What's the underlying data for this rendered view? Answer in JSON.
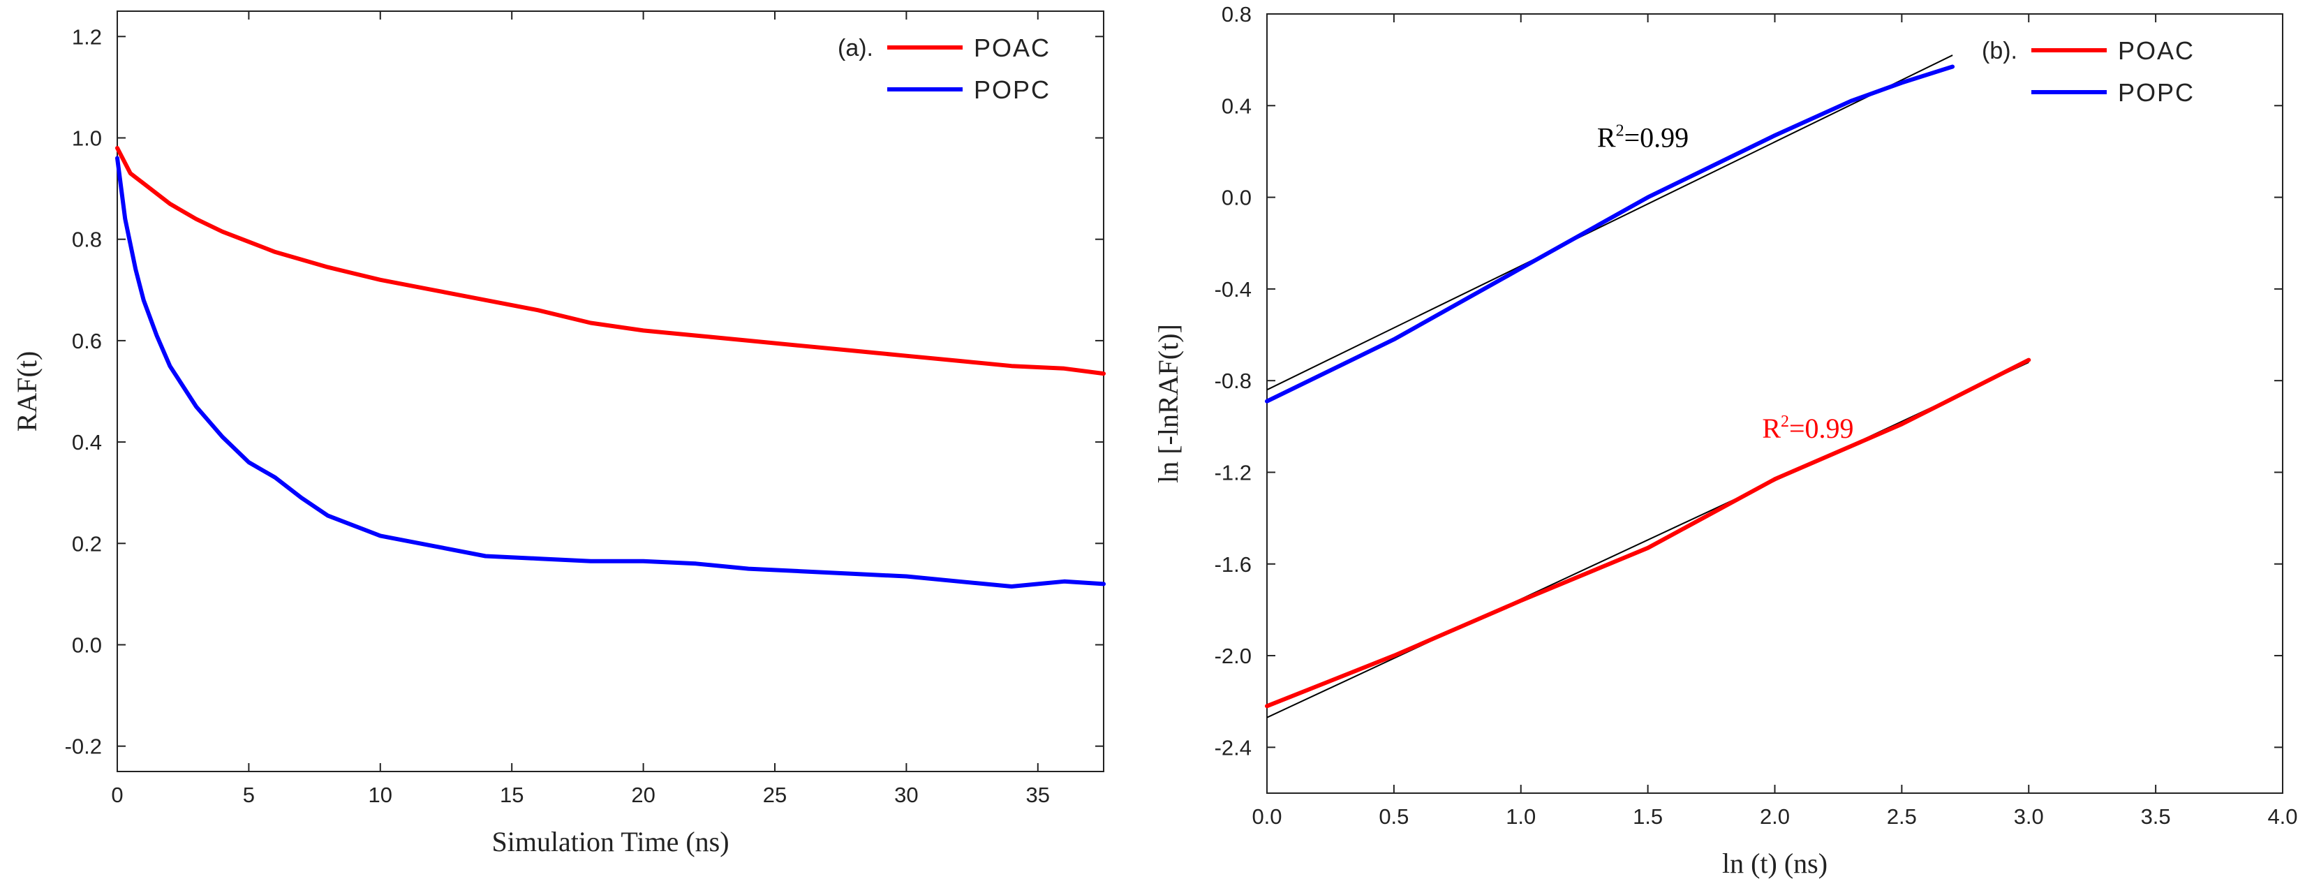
{
  "chart_data": [
    {
      "type": "line",
      "panel_label": "(a).",
      "xlabel": "Simulation Time (ns)",
      "ylabel": "RAF(t)",
      "xlim": [
        0,
        37.5
      ],
      "ylim": [
        -0.25,
        1.25
      ],
      "xticks": [
        0,
        5,
        10,
        15,
        20,
        25,
        30,
        35
      ],
      "xtick_labels": [
        "0",
        "5",
        "10",
        "15",
        "20",
        "25",
        "30",
        "35"
      ],
      "yticks": [
        -0.2,
        0.0,
        0.2,
        0.4,
        0.6,
        0.8,
        1.0,
        1.2
      ],
      "ytick_labels": [
        "-0.2",
        "0.0",
        "0.2",
        "0.4",
        "0.6",
        "0.8",
        "1.0",
        "1.2"
      ],
      "grid": false,
      "legend_position": "top-right",
      "series": [
        {
          "name": "POAC",
          "color": "#ff0000",
          "x": [
            0,
            0.5,
            1,
            2,
            3,
            4,
            5,
            6,
            7,
            8,
            10,
            12,
            14,
            16,
            18,
            20,
            22,
            24,
            26,
            28,
            30,
            32,
            34,
            36,
            37.5
          ],
          "y": [
            0.98,
            0.93,
            0.91,
            0.87,
            0.84,
            0.815,
            0.795,
            0.775,
            0.76,
            0.745,
            0.72,
            0.7,
            0.68,
            0.66,
            0.635,
            0.62,
            0.61,
            0.6,
            0.59,
            0.58,
            0.57,
            0.56,
            0.55,
            0.545,
            0.535
          ]
        },
        {
          "name": "POPC",
          "color": "#0000ff",
          "x": [
            0,
            0.3,
            0.7,
            1,
            1.5,
            2,
            3,
            4,
            5,
            6,
            7,
            8,
            9,
            10,
            12,
            14,
            16,
            18,
            20,
            22,
            24,
            26,
            28,
            30,
            32,
            34,
            35,
            36,
            37.5
          ],
          "y": [
            0.96,
            0.84,
            0.74,
            0.68,
            0.61,
            0.55,
            0.47,
            0.41,
            0.36,
            0.33,
            0.29,
            0.255,
            0.235,
            0.215,
            0.195,
            0.175,
            0.17,
            0.165,
            0.165,
            0.16,
            0.15,
            0.145,
            0.14,
            0.135,
            0.125,
            0.115,
            0.12,
            0.125,
            0.12
          ]
        }
      ]
    },
    {
      "type": "line",
      "panel_label": "(b).",
      "xlabel": "ln (t) (ns)",
      "ylabel": "ln [-lnRAF(t)]",
      "xlim": [
        0.0,
        4.0
      ],
      "ylim": [
        -2.6,
        0.8
      ],
      "xticks": [
        0.0,
        0.5,
        1.0,
        1.5,
        2.0,
        2.5,
        3.0,
        3.5,
        4.0
      ],
      "xtick_labels": [
        "0.0",
        "0.5",
        "1.0",
        "1.5",
        "2.0",
        "2.5",
        "3.0",
        "3.5",
        "4.0"
      ],
      "yticks": [
        -2.4,
        -2.0,
        -1.6,
        -1.2,
        -0.8,
        -0.4,
        0.0,
        0.4,
        0.8
      ],
      "ytick_labels": [
        "-2.4",
        "-2.0",
        "-1.6",
        "-1.2",
        "-0.8",
        "-0.4",
        "0.0",
        "0.4",
        "0.8"
      ],
      "grid": false,
      "legend_position": "top-right",
      "series": [
        {
          "name": "POAC",
          "color": "#ff0000",
          "x": [
            0.0,
            0.5,
            1.0,
            1.5,
            2.0,
            2.5,
            3.0
          ],
          "y": [
            -2.22,
            -2.0,
            -1.76,
            -1.53,
            -1.23,
            -0.99,
            -0.71
          ]
        },
        {
          "name": "POPC",
          "color": "#0000ff",
          "x": [
            0.0,
            0.5,
            1.0,
            1.5,
            2.0,
            2.3,
            2.5,
            2.7
          ],
          "y": [
            -0.89,
            -0.62,
            -0.31,
            0.0,
            0.27,
            0.42,
            0.5,
            0.57
          ]
        }
      ],
      "fits": [
        {
          "color": "#000000",
          "x": [
            0.0,
            3.0
          ],
          "y": [
            -2.27,
            -0.72
          ]
        },
        {
          "color": "#000000",
          "x": [
            0.0,
            2.7
          ],
          "y": [
            -0.84,
            0.62
          ]
        }
      ],
      "annotations": [
        {
          "text": "R",
          "sup": "2",
          "tail": "=0.99",
          "color": "#000000",
          "x": 1.3,
          "y": 0.22
        },
        {
          "text": "R",
          "sup": "2",
          "tail": "=0.99",
          "color": "#ff0000",
          "x": 1.95,
          "y": -1.05
        }
      ]
    }
  ]
}
